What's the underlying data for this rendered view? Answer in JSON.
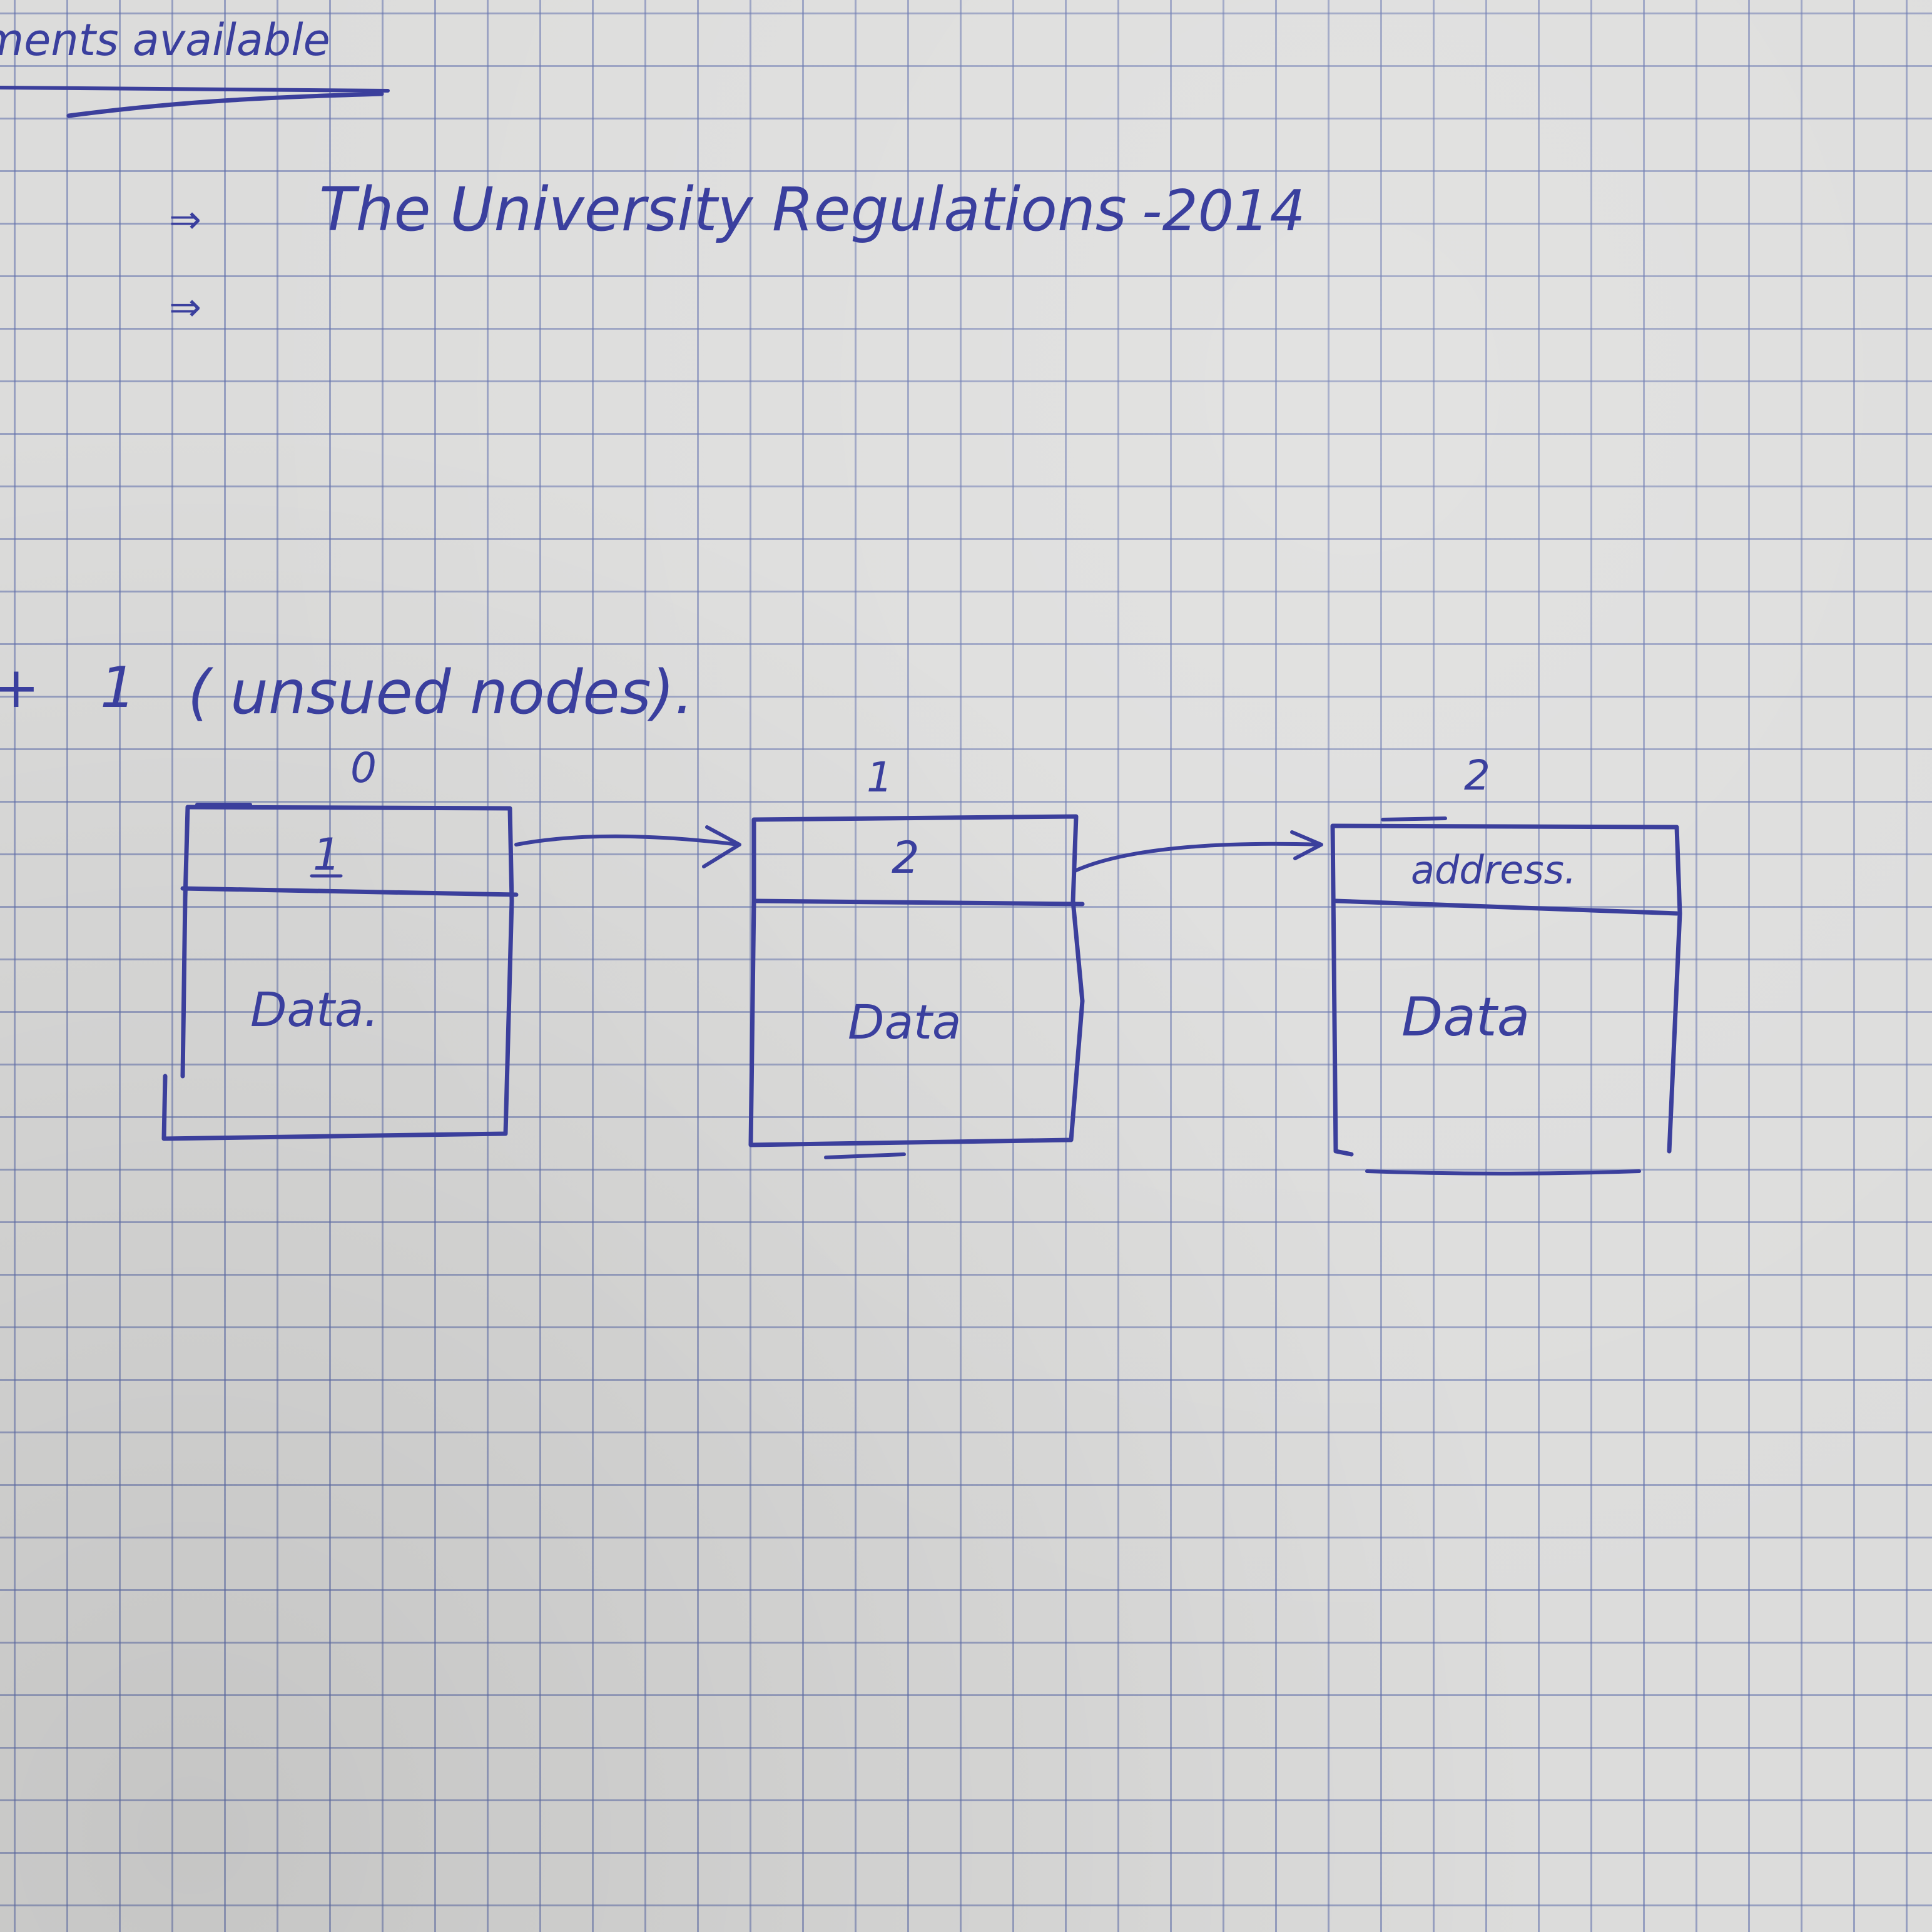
{
  "page": {
    "heading_fragment": "ments available",
    "arrow_symbol": "⇒",
    "bullet_1_text": "The University Regulations",
    "bullet_1_year": "-2014",
    "count_line": {
      "plus": "+",
      "number": "1",
      "note": "( unsued nodes)."
    }
  },
  "linked_list": {
    "nodes": [
      {
        "index": "0",
        "pointer": "1",
        "data": "Data."
      },
      {
        "index": "1",
        "pointer": "2",
        "data": "Data"
      },
      {
        "index": "2",
        "pointer": "address.",
        "data": "Data"
      }
    ]
  },
  "colors": {
    "paper": "#dcdcdb",
    "grid": "#5f6eaa",
    "ink": "#3b3f9c"
  }
}
